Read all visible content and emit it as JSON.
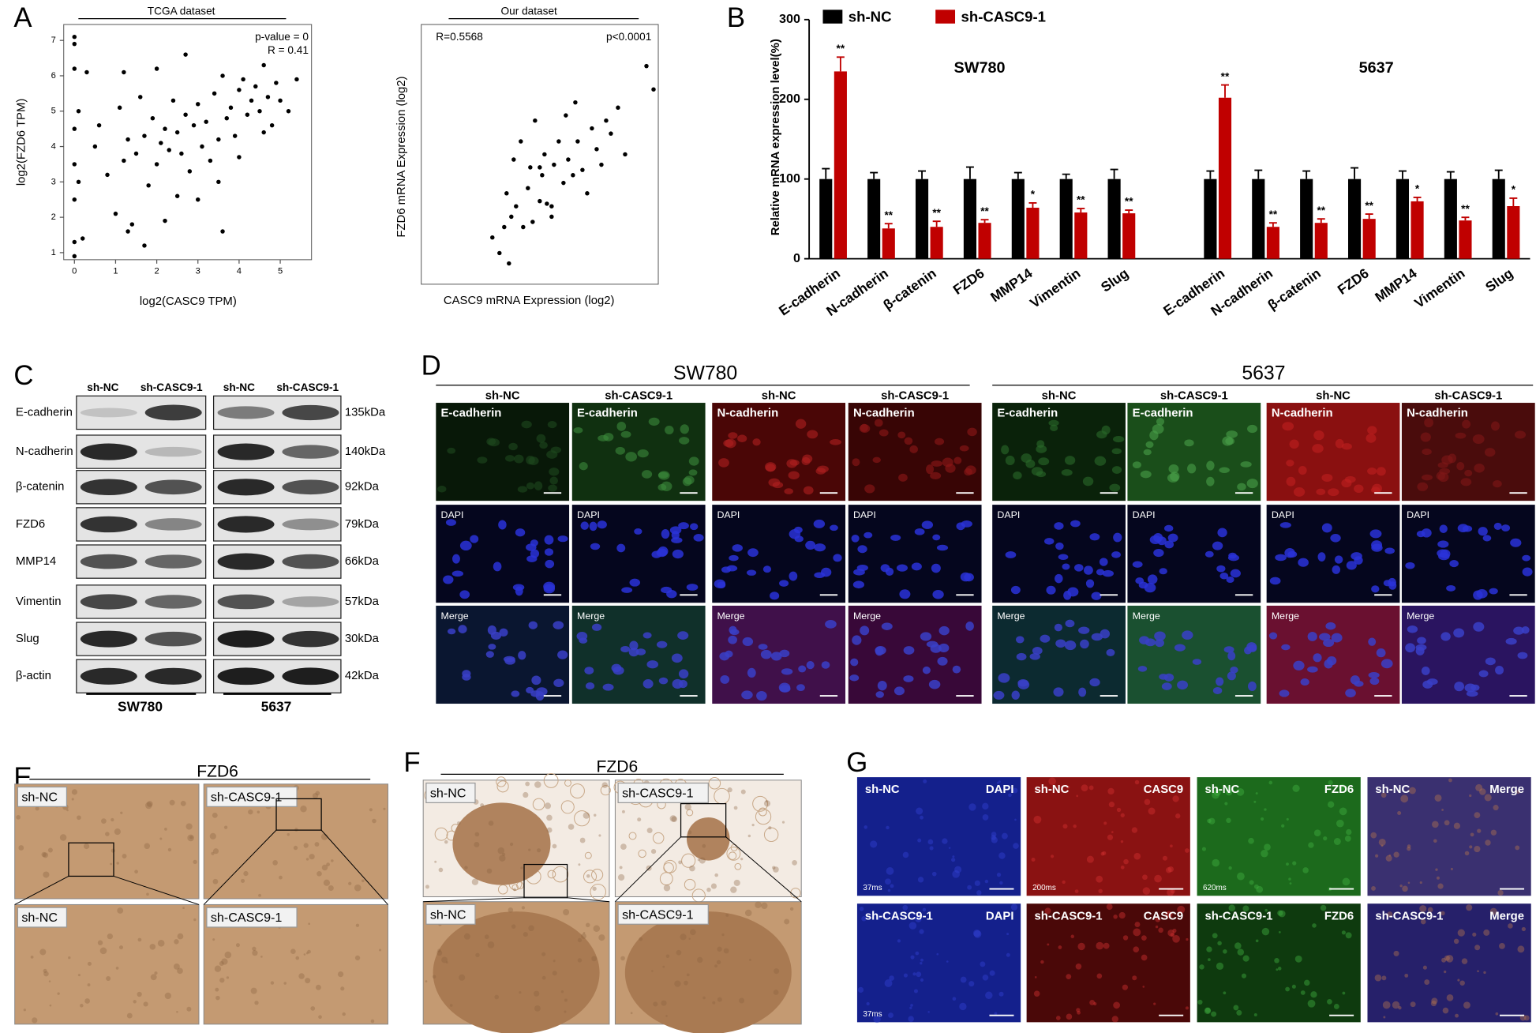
{
  "panel_letters": [
    "A",
    "B",
    "C",
    "D",
    "E",
    "F",
    "G"
  ],
  "chart_data": [
    {
      "type": "scatter",
      "title": "TCGA dataset",
      "x_label": "log2(CASC9 TPM)",
      "y_label": "log2(FZD6 TPM)",
      "annotations": [
        "p-value = 0",
        "R = 0.41"
      ],
      "color": "#000000",
      "x": [
        0,
        0,
        0,
        0,
        0,
        0,
        0.1,
        0.1,
        0.2,
        0.3,
        0.5,
        0.6,
        0.8,
        1.0,
        1.1,
        1.2,
        1.3,
        1.4,
        1.5,
        1.6,
        1.7,
        1.8,
        1.9,
        2.0,
        2.0,
        2.1,
        2.2,
        2.3,
        2.4,
        2.5,
        2.5,
        2.6,
        2.7,
        2.8,
        2.9,
        3.0,
        3.0,
        3.1,
        3.2,
        3.3,
        3.4,
        3.5,
        3.5,
        3.6,
        3.7,
        3.8,
        3.9,
        4.0,
        4.0,
        4.1,
        4.2,
        4.3,
        4.4,
        4.5,
        4.6,
        4.7,
        4.8,
        4.9,
        5.0,
        5.2,
        5.4,
        1.3,
        1.7,
        2.2,
        2.7,
        3.6,
        0.0,
        0.0,
        4.6,
        1.2
      ],
      "y": [
        0.9,
        1.3,
        2.5,
        3.5,
        4.5,
        6.2,
        5.0,
        3.0,
        1.4,
        6.1,
        4.0,
        4.6,
        3.2,
        2.1,
        5.1,
        3.6,
        4.2,
        1.8,
        3.8,
        5.4,
        4.3,
        2.9,
        4.8,
        3.5,
        6.2,
        4.1,
        4.5,
        3.9,
        5.3,
        2.6,
        4.4,
        3.8,
        4.9,
        3.3,
        4.6,
        5.2,
        2.5,
        4.0,
        4.7,
        3.6,
        5.5,
        4.2,
        3.0,
        6.0,
        4.8,
        5.1,
        4.3,
        5.6,
        3.7,
        5.9,
        4.9,
        5.3,
        5.7,
        5.0,
        6.3,
        5.4,
        4.6,
        5.8,
        5.3,
        5.0,
        5.9,
        1.6,
        1.2,
        1.9,
        6.6,
        1.6,
        6.9,
        7.1,
        4.4,
        6.1
      ],
      "xlim": [
        -0.26,
        5.76
      ],
      "ylim": [
        0.8,
        7.45
      ],
      "xticks": [
        0,
        1,
        2,
        3,
        4,
        5
      ],
      "yticks": [
        1,
        2,
        3,
        4,
        5,
        6,
        7
      ]
    },
    {
      "type": "scatter",
      "title": "Our dataset",
      "x_label": "CASC9 mRNA Expression (log2)",
      "y_label": "FZD6 mRNA Expression (log2)",
      "annotations": [
        "R=0.5568",
        "p<0.0001"
      ],
      "color": "#000000",
      "x": [
        5.5,
        3.0,
        3.3,
        3.5,
        3.6,
        3.8,
        3.9,
        4.0,
        4.2,
        4.3,
        4.5,
        4.6,
        4.7,
        4.8,
        5.0,
        5.1,
        5.2,
        5.3,
        5.5,
        5.6,
        5.8,
        6.0,
        6.1,
        6.2,
        6.4,
        6.5,
        6.6,
        6.8,
        7.0,
        7.2,
        7.4,
        7.6,
        7.8,
        8.0,
        8.3,
        8.6,
        9.5,
        9.8,
        3.7,
        5.0
      ],
      "y": [
        3.0,
        1.8,
        1.2,
        2.2,
        3.5,
        2.6,
        4.8,
        3.0,
        5.5,
        2.2,
        3.7,
        4.5,
        2.4,
        6.3,
        3.2,
        4.2,
        5.0,
        3.1,
        2.6,
        4.6,
        5.5,
        3.9,
        6.5,
        4.8,
        4.2,
        7.0,
        5.5,
        4.4,
        3.5,
        6.0,
        5.2,
        4.6,
        6.3,
        5.8,
        6.8,
        5.0,
        8.4,
        7.5,
        0.8,
        4.5
      ],
      "xlim": [
        0,
        10
      ],
      "ylim": [
        0,
        10
      ]
    },
    {
      "type": "bar",
      "y_label": "Relative mRNA expression level(%)",
      "group_labels": [
        "SW780",
        "5637"
      ],
      "categories": [
        "E-cadherin",
        "N-cadherin",
        "β-catenin",
        "FZD6",
        "MMP14",
        "Vimentin",
        "Slug",
        "E-cadherin",
        "N-cadherin",
        "β-catenin",
        "FZD6",
        "MMP14",
        "Vimentin",
        "Slug"
      ],
      "series": [
        {
          "name": "sh-NC",
          "color": "#000000",
          "values": [
            100,
            100,
            100,
            100,
            100,
            100,
            100,
            100,
            100,
            100,
            100,
            100,
            100,
            100
          ],
          "errors": [
            13,
            8,
            10,
            15,
            8,
            6,
            12,
            10,
            11,
            10,
            14,
            10,
            9,
            11
          ]
        },
        {
          "name": "sh-CASC9-1",
          "color": "#c00000",
          "values": [
            235,
            38,
            40,
            45,
            64,
            58,
            57,
            202,
            40,
            45,
            50,
            72,
            48,
            66
          ],
          "errors": [
            18,
            6,
            7,
            4,
            6,
            5,
            4,
            16,
            5,
            5,
            6,
            5,
            4,
            10
          ],
          "significance": [
            "**",
            "**",
            "**",
            "**",
            "*",
            "**",
            "**",
            "**",
            "**",
            "**",
            "**",
            "*",
            "**",
            "*"
          ]
        }
      ],
      "ylim": [
        0,
        300
      ],
      "yticks": [
        0,
        100,
        200,
        300
      ]
    }
  ],
  "panel_c": {
    "column_headers": [
      "sh-NC",
      "sh-CASC9-1",
      "sh-NC",
      "sh-CASC9-1"
    ],
    "proteins": [
      "E-cadherin",
      "N-cadherin",
      "β-catenin",
      "FZD6",
      "MMP14",
      "Vimentin",
      "Slug",
      "β-actin"
    ],
    "weights": [
      "135kDa",
      "140kDa",
      "92kDa",
      "79kDa",
      "66kDa",
      "57kDa",
      "30kDa",
      "42kDa"
    ],
    "cell_lines": [
      "SW780",
      "5637"
    ]
  },
  "panel_d": {
    "cell_lines": [
      "SW780",
      "5637"
    ],
    "column_headers": [
      "sh-NC",
      "sh-CASC9-1",
      "sh-NC",
      "sh-CASC9-1",
      "sh-NC",
      "sh-CASC9-1",
      "sh-NC",
      "sh-CASC9-1"
    ],
    "markers": [
      "E-cadherin",
      "E-cadherin",
      "N-cadherin",
      "N-cadherin",
      "E-cadherin",
      "E-cadherin",
      "N-cadherin",
      "N-cadherin"
    ],
    "row_labels": [
      "DAPI",
      "Merge"
    ]
  },
  "panel_e": {
    "title": "FZD6",
    "labels": [
      "sh-NC",
      "sh-CASC9-1",
      "sh-NC",
      "sh-CASC9-1"
    ]
  },
  "panel_f": {
    "title": "FZD6",
    "labels": [
      "sh-NC",
      "sh-CASC9-1",
      "sh-NC",
      "sh-CASC9-1"
    ]
  },
  "panel_g": {
    "row_labels": [
      "sh-NC",
      "sh-CASC9-1"
    ],
    "channels": [
      "DAPI",
      "CASC9",
      "FZD6",
      "Merge"
    ],
    "exposures": [
      "37ms",
      "200ms",
      "620ms",
      "37ms"
    ]
  }
}
